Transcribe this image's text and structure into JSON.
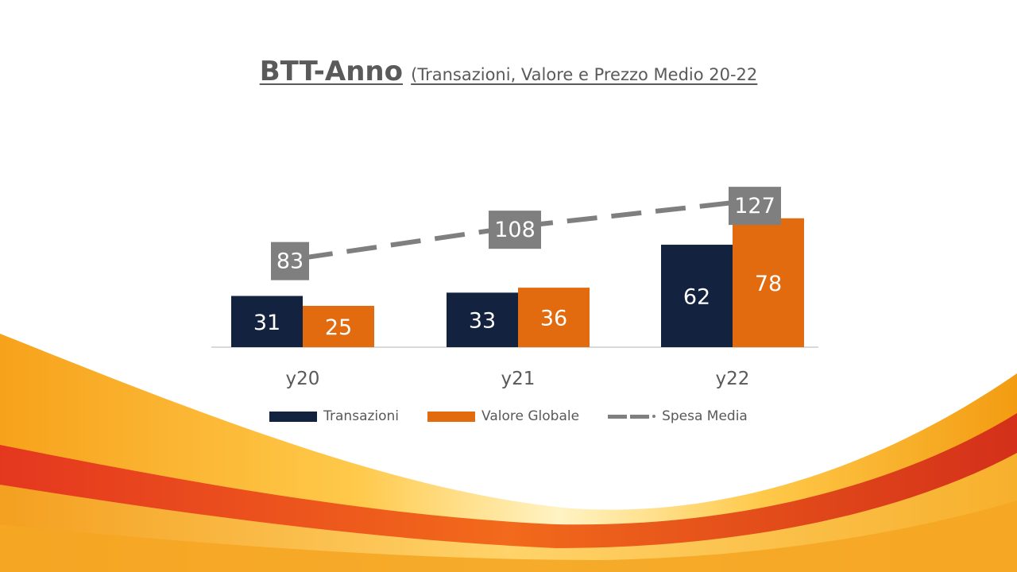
{
  "title": {
    "main": "BTT-Anno",
    "sub": "(Transazioni, Valore e Prezzo Medio 20-22"
  },
  "colors": {
    "transazioni": "#13233f",
    "valore_globale": "#e26b10",
    "spesa_media": "#7f7f7f",
    "label_text_dark_bar": "#ffffff",
    "axis_text": "#595959"
  },
  "chart_data": {
    "type": "bar",
    "categories": [
      "y20",
      "y21",
      "y22"
    ],
    "series": [
      {
        "name": "Transazioni",
        "type": "bar",
        "values": [
          31,
          33,
          62
        ]
      },
      {
        "name": "Valore Globale",
        "type": "bar",
        "values": [
          25,
          36,
          78
        ]
      },
      {
        "name": "Spesa Media",
        "type": "line",
        "style": "dashed",
        "values": [
          83,
          108,
          127
        ]
      }
    ],
    "title": "BTT-Anno (Transazioni, Valore e Prezzo Medio 20-22",
    "xlabel": "",
    "ylabel": "",
    "grid": false,
    "legend_position": "bottom",
    "data_labels": true
  },
  "legend": [
    {
      "label": "Transazioni",
      "kind": "bar",
      "color": "#13233f"
    },
    {
      "label": "Valore Globale",
      "kind": "bar",
      "color": "#e26b10"
    },
    {
      "label": "Spesa Media",
      "kind": "dashed-line",
      "color": "#7f7f7f"
    }
  ]
}
